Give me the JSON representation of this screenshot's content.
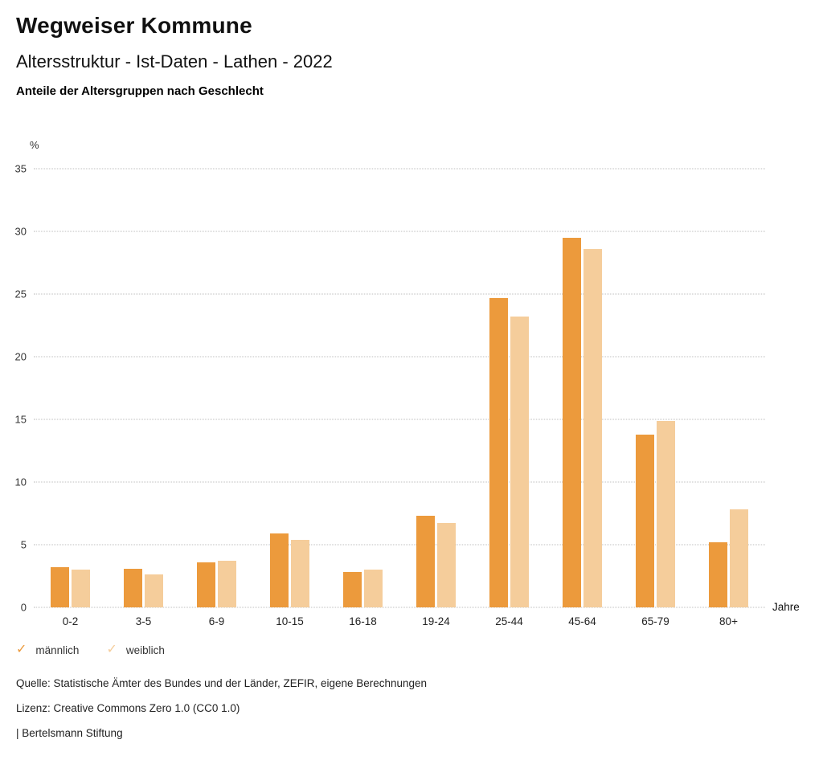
{
  "header": {
    "title": "Wegweiser Kommune",
    "subtitle": "Altersstruktur - Ist-Daten - Lathen - 2022",
    "caption": "Anteile der Altersgruppen nach Geschlecht"
  },
  "chart_data": {
    "type": "bar",
    "title": "Anteile der Altersgruppen nach Geschlecht",
    "categories": [
      "0-2",
      "3-5",
      "6-9",
      "10-15",
      "16-18",
      "19-24",
      "25-44",
      "45-64",
      "65-79",
      "80+"
    ],
    "series": [
      {
        "name": "männlich",
        "color": "#EC9A3C",
        "values": [
          3.2,
          3.1,
          3.6,
          5.9,
          2.8,
          7.3,
          24.7,
          29.5,
          13.8,
          5.2
        ]
      },
      {
        "name": "weiblich",
        "color": "#F5CD9B",
        "values": [
          3.0,
          2.6,
          3.7,
          5.4,
          3.0,
          6.7,
          23.2,
          28.6,
          14.9,
          7.8
        ]
      }
    ],
    "xlabel": "Jahre",
    "ylabel": "%",
    "ylim": [
      0,
      35
    ],
    "yticks": [
      0,
      5,
      10,
      15,
      20,
      25,
      30,
      35
    ],
    "grid": "horizontal-dotted",
    "legend_position": "bottom-left"
  },
  "icons": {
    "check": "✓"
  },
  "footer": {
    "source": "Quelle: Statistische Ämter des Bundes und der Länder, ZEFIR, eigene Berechnungen",
    "license": "Lizenz: Creative Commons Zero 1.0 (CC0 1.0)",
    "attribution": "| Bertelsmann Stiftung"
  }
}
